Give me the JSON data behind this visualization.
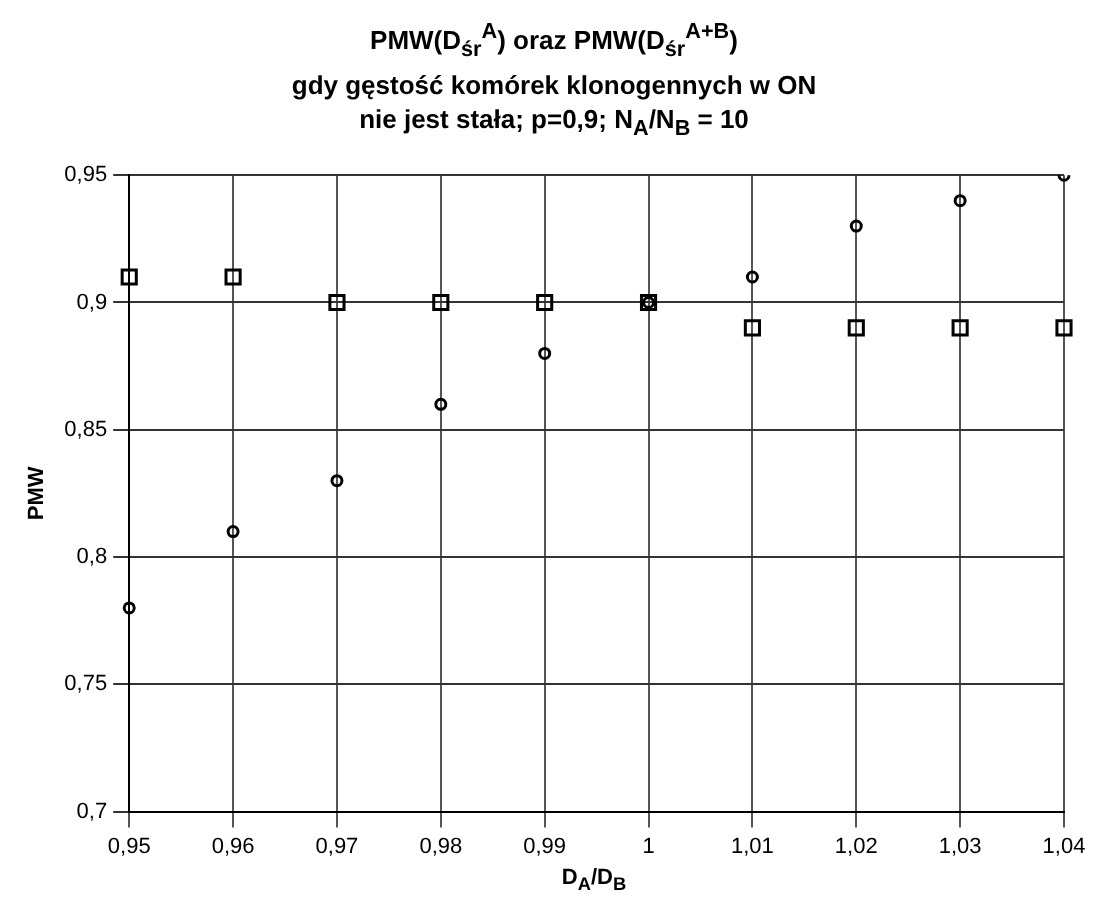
{
  "chart_data": {
    "type": "scatter",
    "title": "PMW(D$_{śr}$$^{A}$) oraz PMW(D$_{śr}$$^{A+B}$)\ngdy gęstość komórek klonogennych w ON\nnie jest stała; p=0,9; N$_{A}$/N$_{B}$ = 10",
    "xlabel": "D$_{A}$/D$_{B}$",
    "ylabel": "PMW",
    "categories": [
      "0,95",
      "0,96",
      "0,97",
      "0,98",
      "0,99",
      "1",
      "1,01",
      "1,02",
      "1,03",
      "1,04"
    ],
    "series": [
      {
        "color": "#000000",
        "marker": "square",
        "values": [
          0.91,
          0.91,
          0.9,
          0.9,
          0.9,
          0.9,
          0.89,
          0.89,
          0.89,
          0.89
        ]
      },
      {
        "color": "#000000",
        "marker": "circle",
        "values": [
          0.78,
          0.81,
          0.83,
          0.86,
          0.88,
          0.9,
          0.91,
          0.93,
          0.94,
          0.95
        ]
      }
    ],
    "ylim": [
      0.7,
      0.95
    ],
    "yticks": [
      {
        "value": 0.7,
        "label": "0,7"
      },
      {
        "value": 0.75,
        "label": "0,75"
      },
      {
        "value": 0.8,
        "label": "0,8"
      },
      {
        "value": 0.85,
        "label": "0,85"
      },
      {
        "value": 0.9,
        "label": "0,9"
      },
      {
        "value": 0.95,
        "label": "0,95"
      }
    ],
    "grid": true,
    "legend": false
  }
}
